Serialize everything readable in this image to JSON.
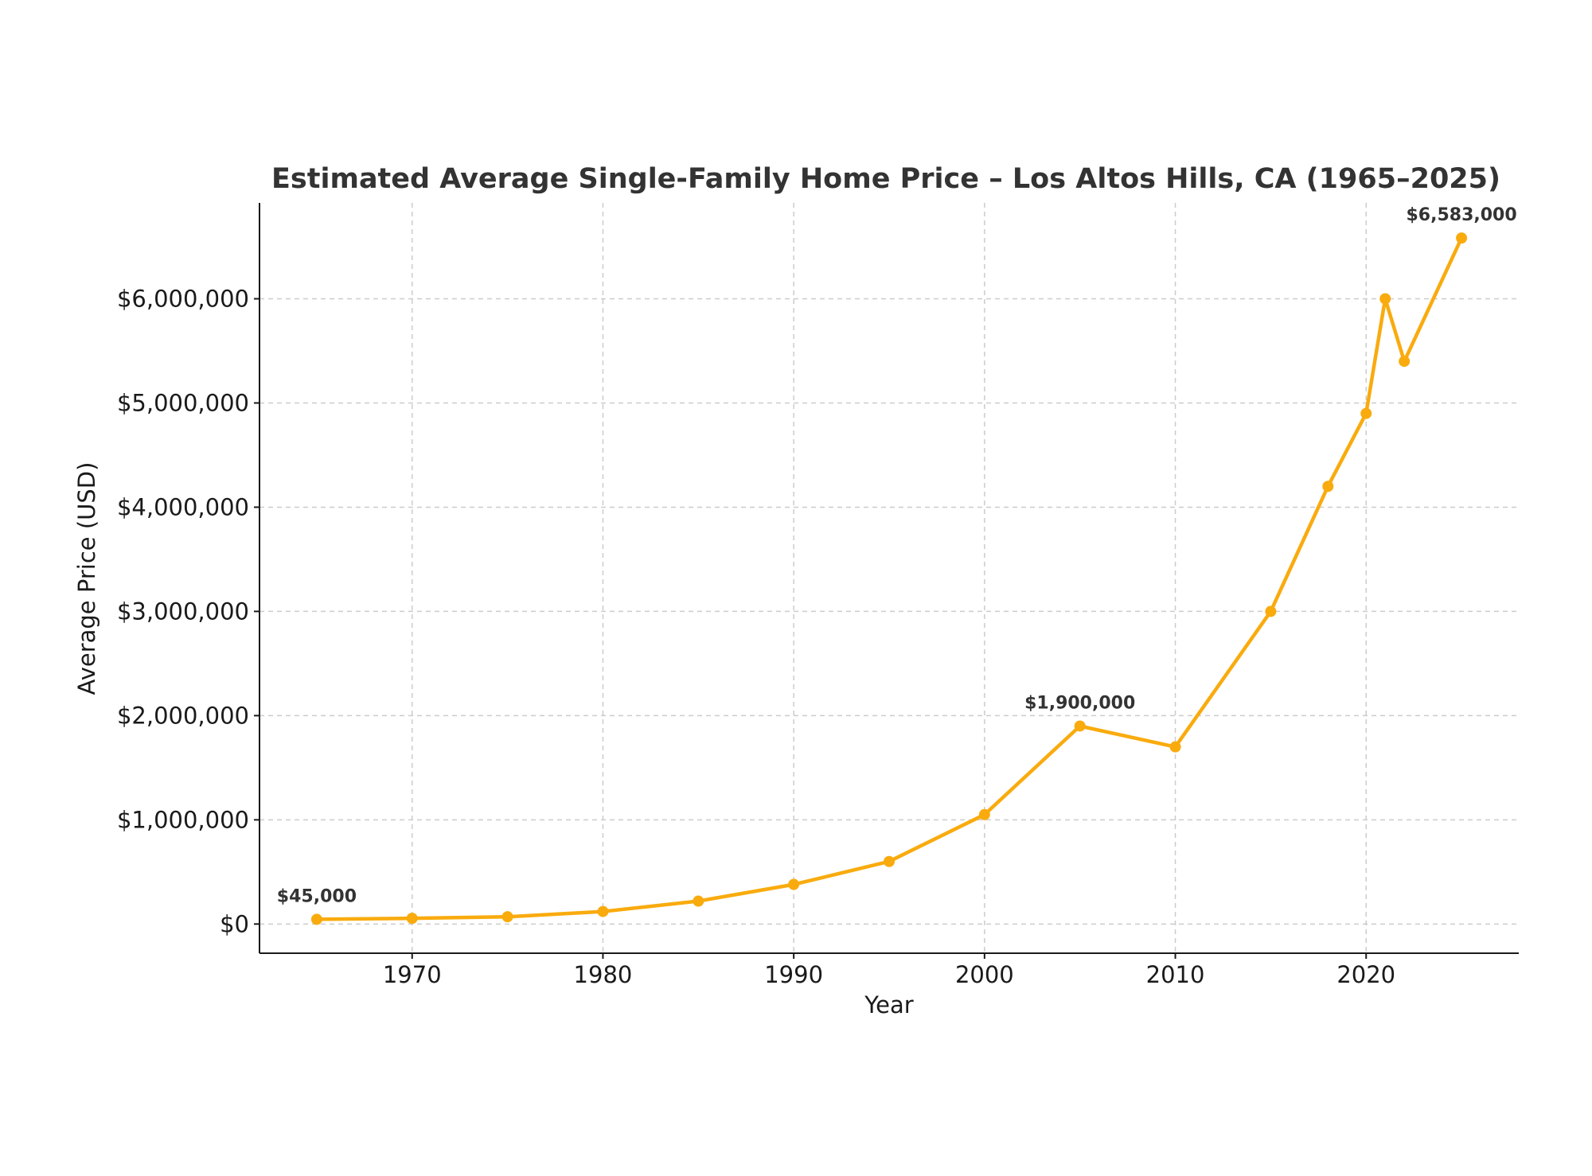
{
  "chart_data": {
    "type": "line",
    "title": "Estimated Average Single-Family Home Price – Los Altos Hills, CA (1965–2025)",
    "xlabel": "Year",
    "ylabel": "Average Price (USD)",
    "x": [
      1965,
      1970,
      1975,
      1980,
      1985,
      1990,
      1995,
      2000,
      2005,
      2010,
      2015,
      2018,
      2020,
      2021,
      2022,
      2025
    ],
    "series": [
      {
        "name": "Average Price",
        "values": [
          45000,
          55000,
          70000,
          120000,
          220000,
          380000,
          600000,
          1050000,
          1900000,
          1700000,
          3000000,
          4200000,
          4900000,
          6000000,
          5400000,
          6583000
        ]
      }
    ],
    "xlim": [
      1962,
      2028
    ],
    "ylim": [
      -280000,
      6920000
    ],
    "xticks": [
      1970,
      1980,
      1990,
      2000,
      2010,
      2020
    ],
    "xtick_labels": [
      "1970",
      "1980",
      "1990",
      "2000",
      "2010",
      "2020"
    ],
    "yticks": [
      0,
      1000000,
      2000000,
      3000000,
      4000000,
      5000000,
      6000000
    ],
    "ytick_labels": [
      "$0",
      "$1,000,000",
      "$2,000,000",
      "$3,000,000",
      "$4,000,000",
      "$5,000,000",
      "$6,000,000"
    ],
    "annotations": [
      {
        "x": 1965,
        "y": 45000,
        "text": "$45,000"
      },
      {
        "x": 2005,
        "y": 1900000,
        "text": "$1,900,000"
      },
      {
        "x": 2025,
        "y": 6583000,
        "text": "$6,583,000"
      }
    ],
    "grid": true,
    "line_color": "#f9ab0e"
  }
}
